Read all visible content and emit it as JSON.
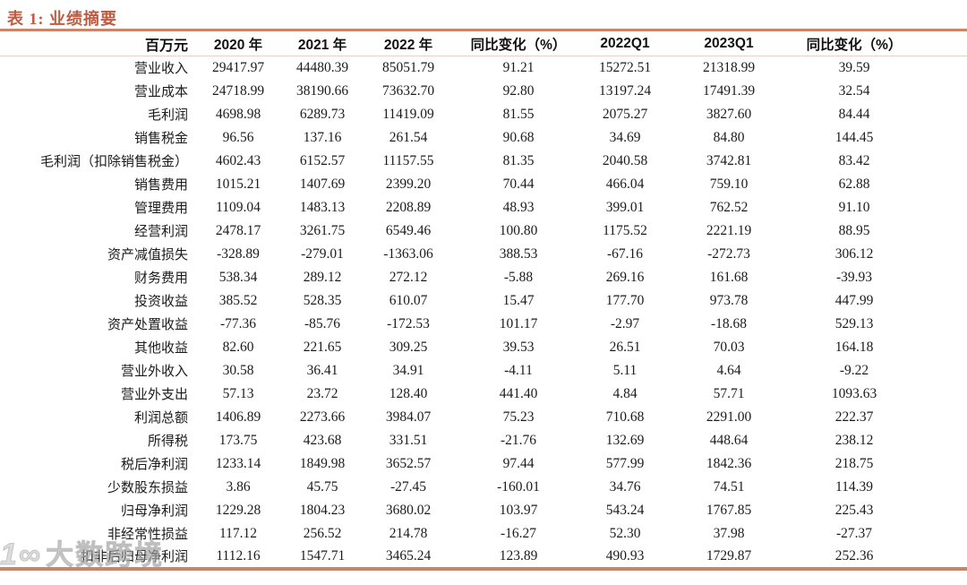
{
  "title": "表 1:  业绩摘要",
  "table": {
    "columns": [
      "百万元",
      "2020 年",
      "2021 年",
      "2022 年",
      "同比变化（%）",
      "2022Q1",
      "2023Q1",
      "同比变化（%）"
    ],
    "rows": [
      {
        "label": "营业收入",
        "values": [
          "29417.97",
          "44480.39",
          "85051.79",
          "91.21",
          "15272.51",
          "21318.99",
          "39.59"
        ]
      },
      {
        "label": "营业成本",
        "values": [
          "24718.99",
          "38190.66",
          "73632.70",
          "92.80",
          "13197.24",
          "17491.39",
          "32.54"
        ]
      },
      {
        "label": "毛利润",
        "values": [
          "4698.98",
          "6289.73",
          "11419.09",
          "81.55",
          "2075.27",
          "3827.60",
          "84.44"
        ]
      },
      {
        "label": "销售税金",
        "values": [
          "96.56",
          "137.16",
          "261.54",
          "90.68",
          "34.69",
          "84.80",
          "144.45"
        ]
      },
      {
        "label": "毛利润（扣除销售税金）",
        "values": [
          "4602.43",
          "6152.57",
          "11157.55",
          "81.35",
          "2040.58",
          "3742.81",
          "83.42"
        ]
      },
      {
        "label": "销售费用",
        "values": [
          "1015.21",
          "1407.69",
          "2399.20",
          "70.44",
          "466.04",
          "759.10",
          "62.88"
        ]
      },
      {
        "label": "管理费用",
        "values": [
          "1109.04",
          "1483.13",
          "2208.89",
          "48.93",
          "399.01",
          "762.52",
          "91.10"
        ]
      },
      {
        "label": "经营利润",
        "values": [
          "2478.17",
          "3261.75",
          "6549.46",
          "100.80",
          "1175.52",
          "2221.19",
          "88.95"
        ]
      },
      {
        "label": "资产减值损失",
        "values": [
          "-328.89",
          "-279.01",
          "-1363.06",
          "388.53",
          "-67.16",
          "-272.73",
          "306.12"
        ]
      },
      {
        "label": "财务费用",
        "values": [
          "538.34",
          "289.12",
          "272.12",
          "-5.88",
          "269.16",
          "161.68",
          "-39.93"
        ]
      },
      {
        "label": "投资收益",
        "values": [
          "385.52",
          "528.35",
          "610.07",
          "15.47",
          "177.70",
          "973.78",
          "447.99"
        ]
      },
      {
        "label": "资产处置收益",
        "values": [
          "-77.36",
          "-85.76",
          "-172.53",
          "101.17",
          "-2.97",
          "-18.68",
          "529.13"
        ]
      },
      {
        "label": "其他收益",
        "values": [
          "82.60",
          "221.65",
          "309.25",
          "39.53",
          "26.51",
          "70.03",
          "164.18"
        ]
      },
      {
        "label": "营业外收入",
        "values": [
          "30.58",
          "36.41",
          "34.91",
          "-4.11",
          "5.11",
          "4.64",
          "-9.22"
        ]
      },
      {
        "label": "营业外支出",
        "values": [
          "57.13",
          "23.72",
          "128.40",
          "441.40",
          "4.84",
          "57.71",
          "1093.63"
        ]
      },
      {
        "label": "利润总额",
        "values": [
          "1406.89",
          "2273.66",
          "3984.07",
          "75.23",
          "710.68",
          "2291.00",
          "222.37"
        ]
      },
      {
        "label": "所得税",
        "values": [
          "173.75",
          "423.68",
          "331.51",
          "-21.76",
          "132.69",
          "448.64",
          "238.12"
        ]
      },
      {
        "label": "税后净利润",
        "values": [
          "1233.14",
          "1849.98",
          "3652.57",
          "97.44",
          "577.99",
          "1842.36",
          "218.75"
        ]
      },
      {
        "label": "少数股东损益",
        "values": [
          "3.86",
          "45.75",
          "-27.45",
          "-160.01",
          "34.76",
          "74.51",
          "114.39"
        ]
      },
      {
        "label": "归母净利润",
        "values": [
          "1229.28",
          "1804.23",
          "3680.02",
          "103.97",
          "543.24",
          "1767.85",
          "225.43"
        ]
      },
      {
        "label": "非经常性损益",
        "values": [
          "117.12",
          "256.52",
          "214.78",
          "-16.27",
          "52.30",
          "37.98",
          "-27.37"
        ]
      },
      {
        "label": "扣非后归母净利润",
        "values": [
          "1112.16",
          "1547.71",
          "3465.24",
          "123.89",
          "490.93",
          "1729.87",
          "252.36"
        ]
      }
    ]
  },
  "watermark": {
    "icon_glyph": "1∞",
    "text": "大数跨境"
  },
  "colors": {
    "accent_title": "#bf5b40",
    "rule_heavy": "#c9846a",
    "rule_light": "#edd2c4",
    "body_text": "#1b1b1b"
  }
}
